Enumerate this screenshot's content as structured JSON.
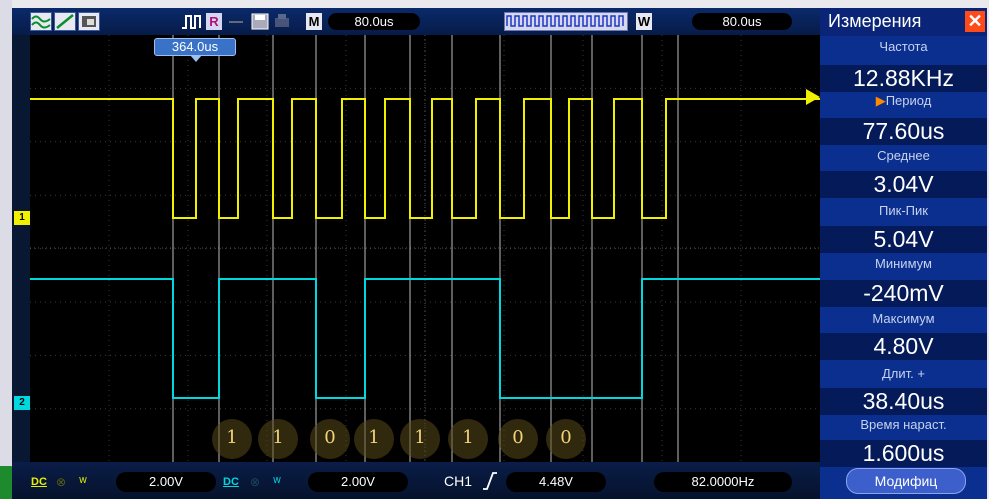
{
  "toolbar": {
    "time_scale_main": "80.0us",
    "time_scale_window": "80.0us",
    "label_m": "M",
    "label_w": "W",
    "label_r": "R"
  },
  "cursor_time": "364.0us",
  "decoded_bits": [
    "1",
    "1",
    "0",
    "1",
    "1",
    "1",
    "0",
    "0"
  ],
  "channel_markers": {
    "ch1": "1",
    "ch2": "2"
  },
  "measurements": {
    "title": "Измерения",
    "items": [
      {
        "label": "Частота",
        "value": "12.88KHz"
      },
      {
        "label": "Период",
        "value": "77.60us"
      },
      {
        "label": "Среднее",
        "value": "3.04V"
      },
      {
        "label": "Пик-Пик",
        "value": "5.04V"
      },
      {
        "label": "Минимум",
        "value": "-240mV"
      },
      {
        "label": "Максимум",
        "value": "4.80V"
      },
      {
        "label": "Длит. +",
        "value": "38.40us"
      },
      {
        "label": "Время нараст.",
        "value": "1.600us"
      }
    ],
    "modify_button": "Модифиц"
  },
  "bottom": {
    "ch1_scale": "2.00V",
    "ch2_scale": "2.00V",
    "trigger_source": "CH1",
    "trigger_level": "4.48V",
    "trigger_freq": "82.0000Hz",
    "coupling_label": "DC"
  },
  "colors": {
    "ch1": "#f0f000",
    "ch2": "#00d8e0",
    "panel": "#0b2f8f",
    "accent": "#ff4b1a"
  },
  "icons": [
    "wave-icon",
    "trend-icon",
    "color-icon",
    "pulse-icon",
    "save-icon",
    "print-icon"
  ]
}
